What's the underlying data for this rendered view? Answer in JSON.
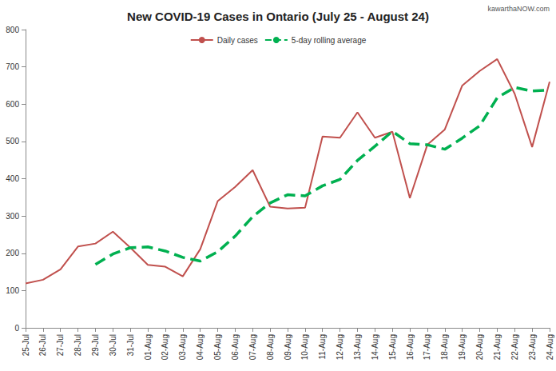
{
  "chart_data": {
    "type": "line",
    "title": "New COVID-19 Cases in Ontario (July 25 - August 24)",
    "annotations": [
      "kawarthaNOW.com"
    ],
    "categories": [
      "25-Jul",
      "26-Jul",
      "27-Jul",
      "28-Jul",
      "29-Jul",
      "30-Jul",
      "31-Jul",
      "01-Aug",
      "02-Aug",
      "03-Aug",
      "04-Aug",
      "05-Aug",
      "06-Aug",
      "07-Aug",
      "08-Aug",
      "09-Aug",
      "10-Aug",
      "11-Aug",
      "12-Aug",
      "13-Aug",
      "14-Aug",
      "15-Aug",
      "16-Aug",
      "17-Aug",
      "18-Aug",
      "19-Aug",
      "20-Aug",
      "21-Aug",
      "22-Aug",
      "23-Aug",
      "24-Aug"
    ],
    "series": [
      {
        "name": "Daily cases",
        "color": "#c0504d",
        "line_style": "solid",
        "marker": "none",
        "values": [
          119,
          129,
          157,
          218,
          226,
          258,
          215,
          169,
          164,
          138,
          211,
          340,
          378,
          423,
          325,
          320,
          322,
          513,
          510,
          578,
          510,
          526,
          348,
          491,
          532,
          650,
          689,
          721,
          628,
          485,
          660
        ]
      },
      {
        "name": "5-day rolling average",
        "color": "#00b050",
        "line_style": "dashed",
        "marker": "none",
        "values": [
          null,
          null,
          null,
          null,
          170,
          198,
          215,
          217,
          206,
          189,
          179,
          204,
          246,
          298,
          335,
          357,
          354,
          381,
          398,
          449,
          487,
          527,
          494,
          491,
          479,
          509,
          542,
          617,
          645,
          635,
          638
        ]
      }
    ],
    "ylim": [
      0,
      800
    ],
    "yticks": [
      0,
      100,
      200,
      300,
      400,
      500,
      600,
      700,
      800
    ],
    "grid": false,
    "legend": "top"
  }
}
